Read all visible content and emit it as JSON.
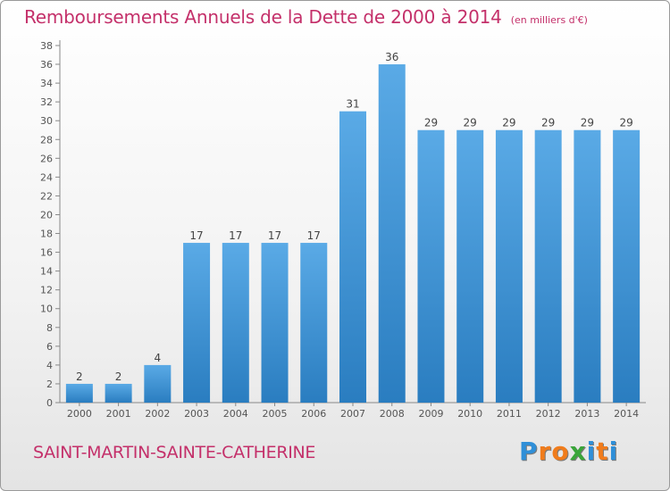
{
  "header": {
    "title": "Remboursements Annuels de la Dette de 2000 à 2014",
    "units": "(en milliers d'€)"
  },
  "footer": {
    "commune": "SAINT-MARTIN-SAINTE-CATHERINE",
    "logo_text": "Proxiti",
    "logo_letters": [
      "P",
      "r",
      "o",
      "x",
      "i",
      "t",
      "i"
    ],
    "logo_colors": [
      "#2f8fd8",
      "#f07c1c",
      "#f07c1c",
      "#3aa53a",
      "#2f8fd8",
      "#f07c1c",
      "#2f8fd8"
    ]
  },
  "chart_data": {
    "type": "bar",
    "categories": [
      "2000",
      "2001",
      "2002",
      "2003",
      "2004",
      "2005",
      "2006",
      "2007",
      "2008",
      "2009",
      "2010",
      "2011",
      "2012",
      "2013",
      "2014"
    ],
    "values": [
      2,
      2,
      4,
      17,
      17,
      17,
      17,
      31,
      36,
      29,
      29,
      29,
      29,
      29,
      29
    ],
    "title": "Remboursements Annuels de la Dette de 2000 à 2014",
    "xlabel": "",
    "ylabel": "",
    "ylim": [
      0,
      38
    ],
    "ytick_step": 2,
    "grid": false,
    "bar_color_top": "#5aaae6",
    "bar_color_bottom": "#2a7dc0",
    "axis_color": "#888888",
    "label_color": "#555555"
  }
}
